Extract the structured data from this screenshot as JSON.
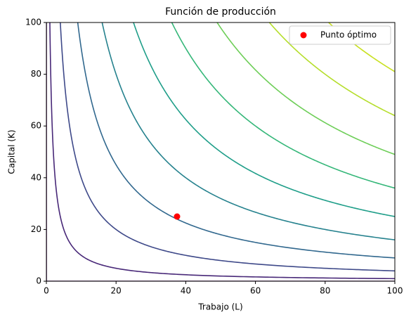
{
  "chart_data": {
    "type": "contour",
    "title": "Función de producción",
    "x_label": "Trabajo (L)",
    "y_label": "Capital (K)",
    "levels": [
      0,
      10,
      20,
      30,
      40,
      50,
      60,
      70,
      80,
      90
    ],
    "level_colors": [
      "#440154",
      "#482878",
      "#3e4989",
      "#31688e",
      "#26828e",
      "#1f9e89",
      "#35b779",
      "#6ece58",
      "#b5de2b",
      "#c8e020"
    ],
    "series": [
      {
        "name": "Punto óptimo",
        "color": "#ff0000",
        "x": [
          37.5
        ],
        "values": [
          25
        ]
      }
    ],
    "xlim": [
      0,
      100
    ],
    "ylim": [
      0,
      100
    ],
    "xticks": [
      0,
      20,
      40,
      60,
      80,
      100
    ],
    "yticks": [
      0,
      20,
      40,
      60,
      80,
      100
    ],
    "legend": "upper right"
  }
}
